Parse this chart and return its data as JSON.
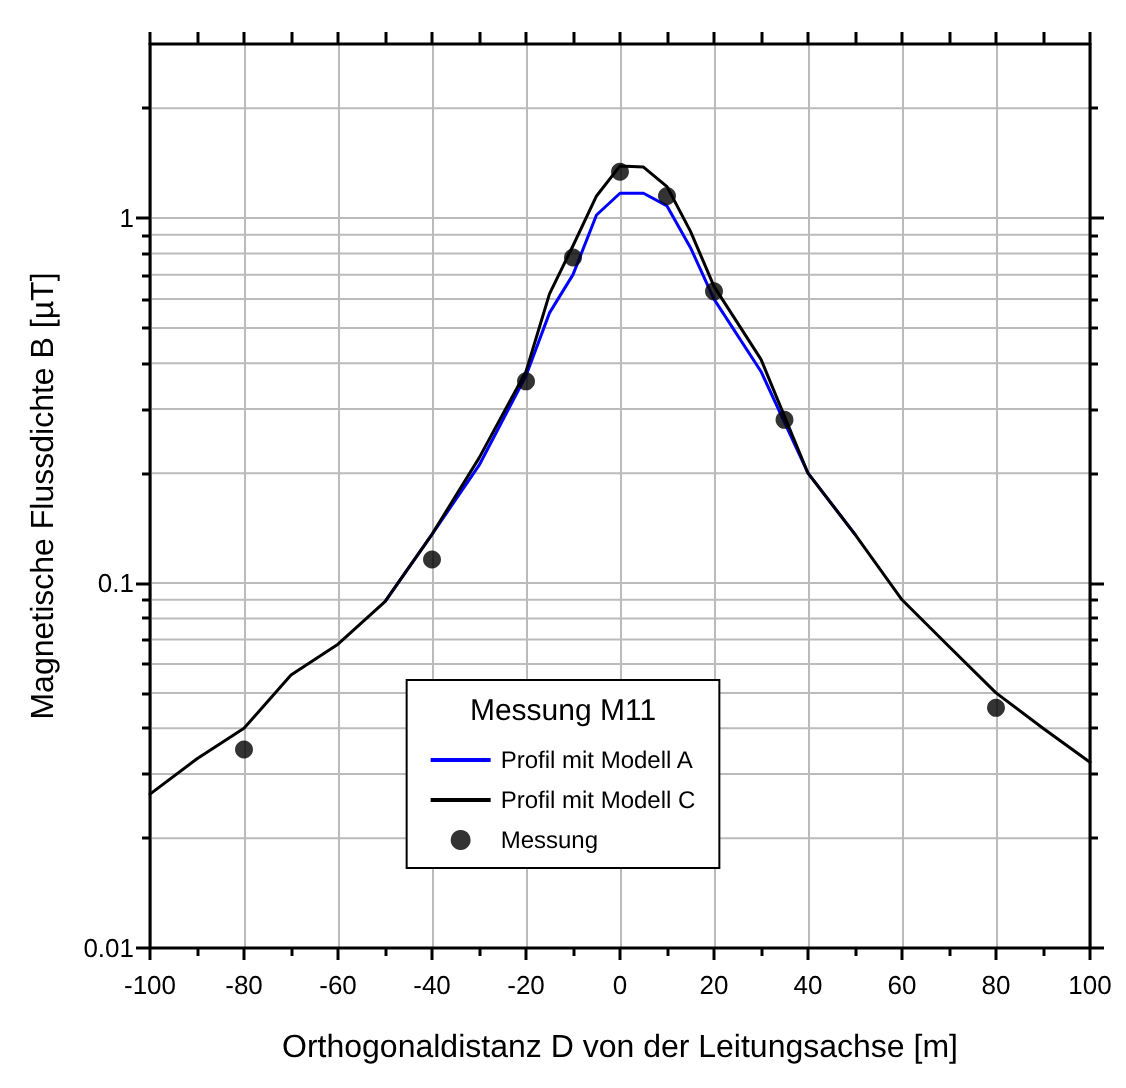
{
  "chart_data": {
    "type": "line",
    "xlabel": "Orthogonaldistanz D von der Leitungsachse [m]",
    "ylabel": "Magnetische Flussdichte B [µT]",
    "legend_title": "Messung M11",
    "series": [
      {
        "name": "Profil mit Modell A",
        "color": "#0000ff",
        "x": [
          -50,
          -40,
          -30,
          -20,
          -15,
          -10,
          -5,
          0,
          5,
          10,
          15,
          20,
          30,
          40,
          50
        ],
        "values": [
          0.089,
          0.136,
          0.21,
          0.37,
          0.55,
          0.7,
          1.02,
          1.17,
          1.17,
          1.08,
          0.83,
          0.6,
          0.38,
          0.2,
          0.136
        ]
      },
      {
        "name": "Profil mit Modell C",
        "color": "#000000",
        "x": [
          -100,
          -90,
          -80,
          -70,
          -60,
          -50,
          -40,
          -30,
          -20,
          -15,
          -10,
          -5,
          0,
          5,
          10,
          15,
          20,
          30,
          40,
          50,
          60,
          70,
          80,
          90,
          100
        ],
        "values": [
          0.0264,
          0.033,
          0.04,
          0.056,
          0.068,
          0.089,
          0.136,
          0.22,
          0.38,
          0.62,
          0.84,
          1.15,
          1.39,
          1.38,
          1.22,
          0.92,
          0.65,
          0.41,
          0.2,
          0.136,
          0.09,
          0.067,
          0.05,
          0.04,
          0.0323
        ]
      },
      {
        "name": "Messung",
        "type": "scatter",
        "color": "#000000",
        "marker": "circle",
        "x": [
          -80,
          -40,
          -20,
          -10,
          0,
          10,
          20,
          35,
          80
        ],
        "values": [
          0.035,
          0.116,
          0.357,
          0.78,
          1.34,
          1.15,
          0.63,
          0.28,
          0.0455
        ]
      }
    ],
    "xlim": [
      -100,
      100
    ],
    "xticks": [
      -100,
      -80,
      -60,
      -40,
      -20,
      0,
      20,
      40,
      60,
      80,
      100
    ],
    "ylim": [
      0.01,
      3
    ],
    "yticks": [
      0.01,
      0.1,
      1
    ],
    "log": "y",
    "grid": true,
    "legend": "bottom",
    "marker": "none",
    "line_style": "solid"
  }
}
